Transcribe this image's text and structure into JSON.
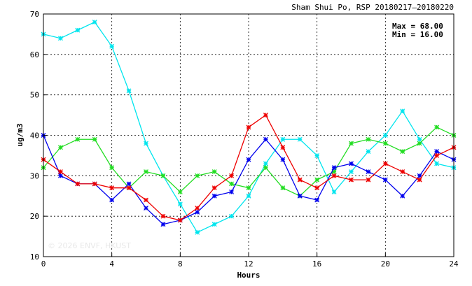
{
  "chart_data": {
    "type": "line",
    "title": "Sham Shui Po, RSP 20180217–20180220",
    "xlabel": "Hours",
    "ylabel": "ug/m3",
    "xlim": [
      0,
      24
    ],
    "ylim": [
      10,
      70
    ],
    "x_ticks": [
      0,
      4,
      8,
      12,
      16,
      20,
      24
    ],
    "y_ticks": [
      10,
      20,
      30,
      40,
      50,
      60,
      70
    ],
    "grid": true,
    "x": [
      0,
      1,
      2,
      3,
      4,
      5,
      6,
      7,
      8,
      9,
      10,
      11,
      12,
      13,
      14,
      15,
      16,
      17,
      18,
      19,
      20,
      21,
      22,
      23,
      24
    ],
    "series": [
      {
        "color": "#00e5ee",
        "values": [
          65,
          64,
          66,
          68,
          62,
          51,
          38,
          30,
          23,
          16,
          18,
          20,
          25,
          33,
          39,
          39,
          35,
          26,
          31,
          36,
          40,
          46,
          39,
          33,
          32
        ]
      },
      {
        "color": "#22dd22",
        "values": [
          32,
          37,
          39,
          39,
          32,
          27,
          31,
          30,
          26,
          30,
          31,
          28,
          27,
          32,
          27,
          25,
          29,
          31,
          38,
          39,
          38,
          36,
          38,
          42,
          40
        ]
      },
      {
        "color": "#0000ee",
        "values": [
          40,
          30,
          28,
          28,
          24,
          28,
          22,
          18,
          19,
          21,
          25,
          26,
          34,
          39,
          34,
          25,
          24,
          32,
          33,
          31,
          29,
          25,
          30,
          36,
          34
        ]
      },
      {
        "color": "#ee0000",
        "values": [
          34,
          31,
          28,
          28,
          27,
          27,
          24,
          20,
          19,
          22,
          27,
          30,
          42,
          45,
          37,
          29,
          27,
          30,
          29,
          29,
          33,
          31,
          29,
          35,
          37
        ]
      }
    ],
    "annotations": {
      "max_label": "Max = 68.00",
      "min_label": "Min = 16.00"
    },
    "watermark": "© 2026  ENVF, HKUST"
  }
}
